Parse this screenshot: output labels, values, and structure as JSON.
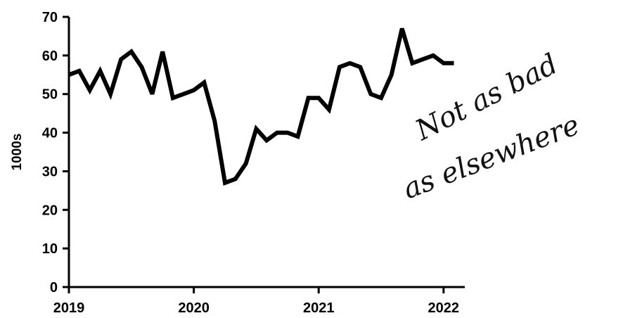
{
  "chart_data": {
    "type": "line",
    "ylabel": "1000s",
    "ylim": [
      0,
      70
    ],
    "yticks": [
      0,
      10,
      20,
      30,
      40,
      50,
      60,
      70
    ],
    "xlim": [
      2019,
      2022.17
    ],
    "xticks": [
      2019,
      2020,
      2021,
      2022
    ],
    "xtick_labels": [
      "2019",
      "2020",
      "2021",
      "2022"
    ],
    "grid": false,
    "series": [
      {
        "color": "#000000",
        "x": [
          2019.0,
          2019.083,
          2019.167,
          2019.25,
          2019.333,
          2019.417,
          2019.5,
          2019.583,
          2019.667,
          2019.75,
          2019.833,
          2019.917,
          2020.0,
          2020.083,
          2020.167,
          2020.25,
          2020.333,
          2020.417,
          2020.5,
          2020.583,
          2020.667,
          2020.75,
          2020.833,
          2020.917,
          2021.0,
          2021.083,
          2021.167,
          2021.25,
          2021.333,
          2021.417,
          2021.5,
          2021.583,
          2021.667,
          2021.75,
          2021.833,
          2021.917,
          2022.0,
          2022.083
        ],
        "y": [
          55,
          56,
          51,
          56,
          50,
          59,
          61,
          57,
          50,
          61,
          49,
          50,
          51,
          53,
          43,
          27,
          28,
          32,
          41,
          38,
          40,
          40,
          39,
          49,
          49,
          46,
          57,
          58,
          57,
          50,
          49,
          55,
          67,
          58,
          59,
          60,
          58,
          58
        ]
      }
    ],
    "annotations": [
      {
        "text": "Not as bad",
        "style": "handwritten"
      },
      {
        "text": "as elsewhere",
        "style": "handwritten"
      }
    ]
  }
}
